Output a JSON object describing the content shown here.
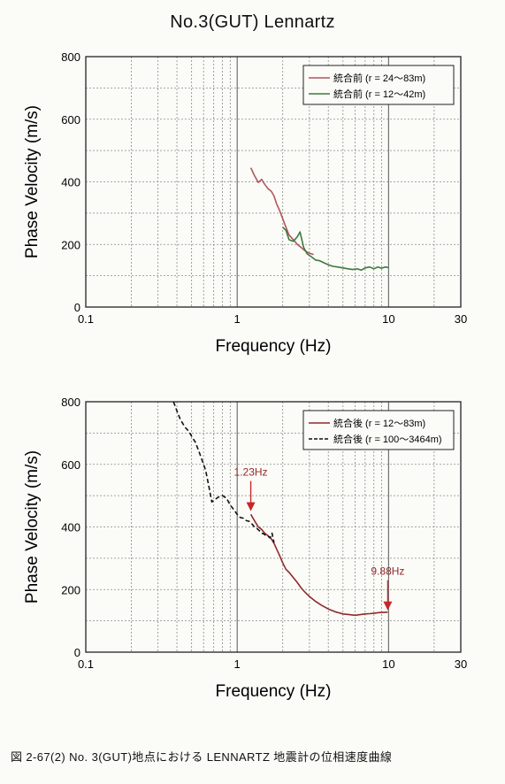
{
  "page": {
    "title": "No.3(GUT)   Lennartz",
    "caption": "図 2-67(2)  No. 3(GUT)地点における LENNARTZ 地震計の位相速度曲線"
  },
  "chart_data": [
    {
      "type": "line",
      "title": "No.3(GUT)   Lennartz",
      "xlabel": "Frequency (Hz)",
      "ylabel": "Phase Velocity (m/s)",
      "xscale": "log",
      "xlim": [
        0.1,
        30
      ],
      "ylim": [
        0,
        800
      ],
      "xticks": [
        "0.1",
        "1",
        "10",
        "30"
      ],
      "yticks": [
        "0",
        "200",
        "400",
        "600",
        "800"
      ],
      "grid": true,
      "legend_position": "top-right",
      "series": [
        {
          "name": "統合前 (r = 24〜83m)",
          "color": "#b0585c",
          "dash": "solid",
          "x": [
            1.23,
            1.3,
            1.38,
            1.45,
            1.52,
            1.6,
            1.68,
            1.75,
            1.82,
            1.9,
            2.0,
            2.1,
            2.2,
            2.35,
            2.5,
            2.65,
            2.8,
            3.0,
            3.2
          ],
          "y": [
            445,
            420,
            398,
            408,
            392,
            378,
            370,
            355,
            330,
            310,
            282,
            255,
            230,
            215,
            200,
            190,
            180,
            172,
            168
          ]
        },
        {
          "name": "統合前 (r = 12〜42m)",
          "color": "#3c7a3c",
          "dash": "solid",
          "x": [
            2.0,
            2.1,
            2.2,
            2.35,
            2.5,
            2.6,
            2.75,
            2.9,
            3.1,
            3.3,
            3.5,
            3.8,
            4.0,
            4.3,
            4.6,
            5.0,
            5.4,
            5.8,
            6.2,
            6.6,
            7.0,
            7.5,
            8.0,
            8.5,
            9.0,
            9.5,
            10.0
          ],
          "y": [
            255,
            245,
            215,
            210,
            225,
            240,
            190,
            170,
            160,
            150,
            148,
            140,
            135,
            130,
            128,
            125,
            122,
            120,
            122,
            118,
            125,
            128,
            122,
            128,
            124,
            128,
            126
          ]
        }
      ]
    },
    {
      "type": "line",
      "xlabel": "Frequency (Hz)",
      "ylabel": "Phase Velocity (m/s)",
      "xscale": "log",
      "xlim": [
        0.1,
        30
      ],
      "ylim": [
        0,
        800
      ],
      "xticks": [
        "0.1",
        "1",
        "10",
        "30"
      ],
      "yticks": [
        "0",
        "200",
        "400",
        "600",
        "800"
      ],
      "grid": true,
      "legend_position": "top-right",
      "series": [
        {
          "name": "統合後 (r = 12〜83m)",
          "color": "#8e2a2a",
          "dash": "solid",
          "x": [
            1.23,
            1.3,
            1.38,
            1.45,
            1.52,
            1.6,
            1.68,
            1.75,
            1.82,
            1.9,
            2.0,
            2.1,
            2.2,
            2.35,
            2.5,
            2.65,
            2.8,
            3.0,
            3.3,
            3.6,
            4.0,
            4.5,
            5.0,
            5.5,
            6.0,
            6.5,
            7.0,
            7.5,
            8.0,
            8.5,
            9.0,
            9.5,
            9.88
          ],
          "y": [
            440,
            420,
            400,
            392,
            380,
            372,
            362,
            348,
            330,
            310,
            285,
            265,
            255,
            238,
            222,
            205,
            192,
            178,
            162,
            150,
            138,
            128,
            122,
            120,
            118,
            120,
            122,
            123,
            124,
            126,
            127,
            127,
            128
          ]
        },
        {
          "name": "統合後 (r = 100〜3464m)",
          "color": "#111111",
          "dash": "dashed",
          "x": [
            0.38,
            0.4,
            0.42,
            0.45,
            0.48,
            0.5,
            0.53,
            0.56,
            0.6,
            0.62,
            0.65,
            0.68,
            0.7,
            0.75,
            0.8,
            0.85,
            0.9,
            0.95,
            1.0,
            1.05,
            1.1,
            1.15,
            1.2,
            1.25,
            1.3,
            1.35,
            1.4,
            1.45,
            1.5,
            1.55,
            1.6,
            1.65,
            1.7,
            1.75
          ],
          "y": [
            800,
            770,
            745,
            720,
            705,
            690,
            670,
            640,
            600,
            580,
            530,
            480,
            485,
            495,
            500,
            492,
            470,
            455,
            440,
            430,
            428,
            420,
            418,
            410,
            400,
            395,
            388,
            380,
            378,
            372,
            370,
            365,
            380,
            350
          ]
        }
      ],
      "annotations": [
        {
          "text": "1.23Hz",
          "x": 1.23,
          "y": 445,
          "color": "#8e2a2a"
        },
        {
          "text": "9.88Hz",
          "x": 9.88,
          "y": 128,
          "color": "#8e2a2a"
        }
      ]
    }
  ]
}
